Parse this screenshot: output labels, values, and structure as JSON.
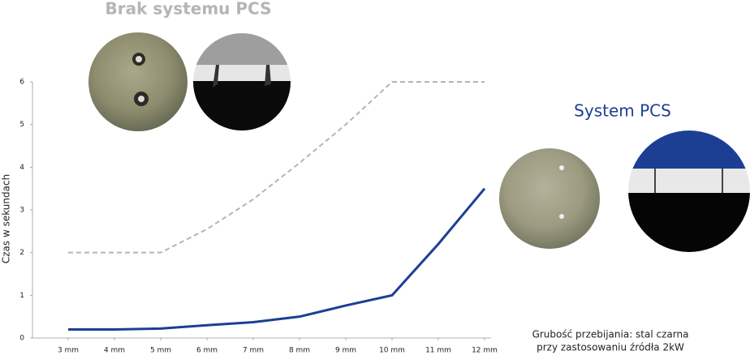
{
  "chart_data": {
    "type": "line",
    "y_label": "Czas w sekundach",
    "categories": [
      "3 mm",
      "4 mm",
      "5 mm",
      "6 mm",
      "7 mm",
      "8 mm",
      "9 mm",
      "10 mm",
      "11 mm",
      "12 mm"
    ],
    "series": [
      {
        "name": "Brak systemu PCS",
        "color": "#b5b5b5",
        "dashed": true,
        "values": [
          2,
          2,
          2,
          2.55,
          3.25,
          4.1,
          5.0,
          6,
          6,
          6
        ]
      },
      {
        "name": "System PCS",
        "color": "#1c3f94",
        "dashed": false,
        "values": [
          0.2,
          0.2,
          0.22,
          0.3,
          0.37,
          0.5,
          0.76,
          1.0,
          2.2,
          3.5
        ]
      }
    ],
    "ylim": [
      0,
      6
    ],
    "yticks": [
      0,
      1,
      2,
      3,
      4,
      5,
      6
    ],
    "grid": false,
    "annotation": [
      "Grubość przebijania: stal czarna",
      "przy zastosowaniu źródła 2kW"
    ]
  }
}
